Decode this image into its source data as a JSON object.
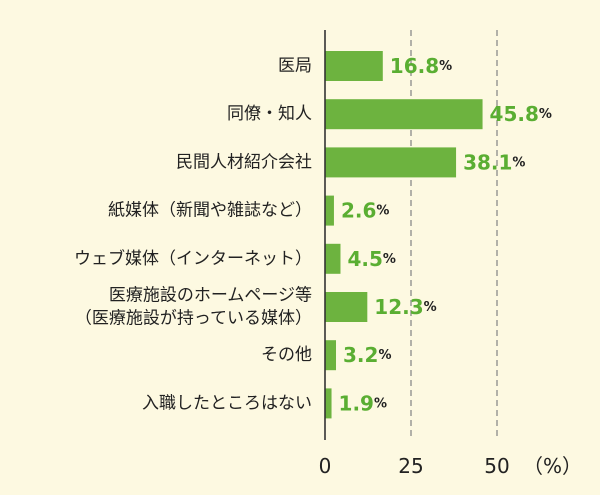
{
  "chart_data": {
    "type": "bar",
    "orientation": "horizontal",
    "categories": [
      [
        "医局"
      ],
      [
        "同僚・知人"
      ],
      [
        "民間人材紹介会社"
      ],
      [
        "紙媒体（新聞や雑誌など）"
      ],
      [
        "ウェブ媒体（インターネット）"
      ],
      [
        "医療施設のホームページ等",
        "（医療施設が持っている媒体）"
      ],
      [
        "その他"
      ],
      [
        "入職したところはない"
      ]
    ],
    "values": [
      16.8,
      45.8,
      38.1,
      2.6,
      4.5,
      12.3,
      3.2,
      1.9
    ],
    "value_labels": [
      "16.8",
      "45.8",
      "38.1",
      "2.6",
      "4.5",
      "12.3",
      "3.2",
      "1.9"
    ],
    "value_unit": "%",
    "xlim": [
      0,
      50
    ],
    "ticks": [
      0,
      25,
      50
    ],
    "tick_labels": [
      "0",
      "25",
      "50"
    ],
    "axis_unit": "（%）",
    "gridlines": [
      25,
      50
    ],
    "colors": {
      "bar": "#6db33f",
      "value_text": "#5aae32",
      "background": "#fdf9e1",
      "grid": "#8a8a8a",
      "axis": "#333333"
    }
  }
}
